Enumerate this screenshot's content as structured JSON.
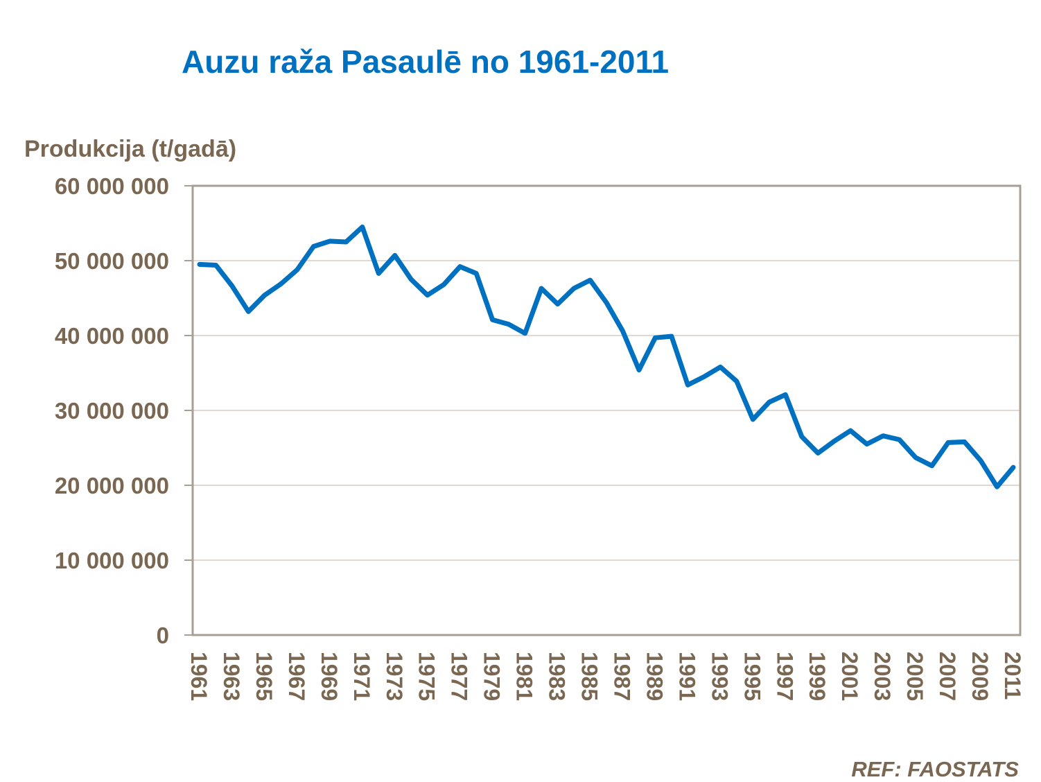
{
  "chart_data": {
    "type": "line",
    "title": "Auzu raža Pasaulē no 1961-2011",
    "ylabel": "Produkcija (t/gadā)",
    "xlabel": "",
    "ylim": [
      0,
      60000000
    ],
    "yticks": [
      0,
      10000000,
      20000000,
      30000000,
      40000000,
      50000000,
      60000000
    ],
    "ytick_labels": [
      "0",
      "10 000 000",
      "20 000 000",
      "30 000 000",
      "40 000 000",
      "50 000 000",
      "60 000 000"
    ],
    "xlim": [
      1961,
      2011
    ],
    "xtick_labels": [
      "1961",
      "1963",
      "1965",
      "1967",
      "1969",
      "1971",
      "1973",
      "1975",
      "1977",
      "1979",
      "1981",
      "1983",
      "1985",
      "1987",
      "1989",
      "1991",
      "1993",
      "1995",
      "1997",
      "1999",
      "2001",
      "2003",
      "2005",
      "2007",
      "2009",
      "2011"
    ],
    "grid": true,
    "legend": "none",
    "colors": {
      "line": "#0070C0",
      "title": "#0070C0",
      "text": "#7A6752",
      "grid": "#BFB3A4",
      "axis": "#A89F94"
    },
    "series": [
      {
        "x": [
          1961,
          1962,
          1963,
          1964,
          1965,
          1966,
          1967,
          1968,
          1969,
          1970,
          1971,
          1972,
          1973,
          1974,
          1975,
          1976,
          1977,
          1978,
          1979,
          1980,
          1981,
          1982,
          1983,
          1984,
          1985,
          1986,
          1987,
          1988,
          1989,
          1990,
          1991,
          1992,
          1993,
          1994,
          1995,
          1996,
          1997,
          1998,
          1999,
          2000,
          2001,
          2002,
          2003,
          2004,
          2005,
          2006,
          2007,
          2008,
          2009,
          2010,
          2011
        ],
        "values": [
          49500000,
          49400000,
          46600000,
          43200000,
          45400000,
          46900000,
          48800000,
          51900000,
          52600000,
          52500000,
          54500000,
          48300000,
          50700000,
          47500000,
          45400000,
          46800000,
          49200000,
          48300000,
          42100000,
          41500000,
          40300000,
          46300000,
          44200000,
          46300000,
          47400000,
          44400000,
          40600000,
          35400000,
          39700000,
          39900000,
          33400000,
          34500000,
          35800000,
          33900000,
          28800000,
          31100000,
          32100000,
          26500000,
          24300000,
          25900000,
          27300000,
          25500000,
          26600000,
          26100000,
          23700000,
          22600000,
          25700000,
          25800000,
          23300000,
          19800000,
          22400000
        ]
      }
    ]
  },
  "source": "REF: FAOSTATS"
}
